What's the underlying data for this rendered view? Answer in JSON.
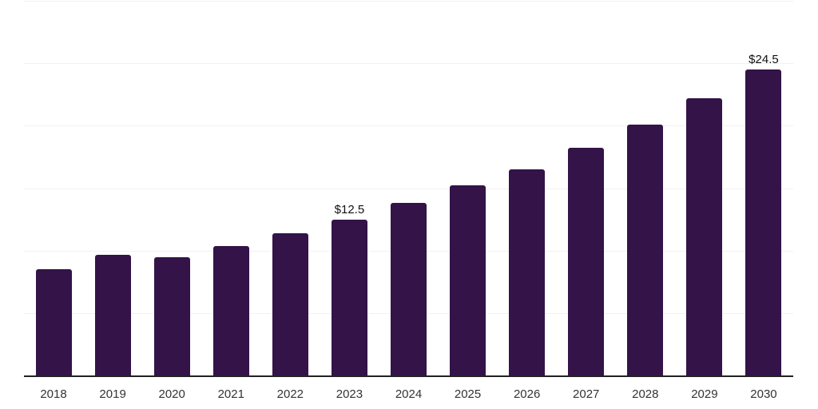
{
  "chart_data": {
    "type": "bar",
    "title": "",
    "xlabel": "",
    "ylabel": "",
    "categories": [
      "2018",
      "2019",
      "2020",
      "2021",
      "2022",
      "2023",
      "2024",
      "2025",
      "2026",
      "2027",
      "2028",
      "2029",
      "2030"
    ],
    "values": [
      8.5,
      9.7,
      9.5,
      10.4,
      11.4,
      12.5,
      13.8,
      15.2,
      16.5,
      18.2,
      20.1,
      22.2,
      24.5
    ],
    "data_labels": {
      "2023": "$12.5",
      "2030": "$24.5"
    },
    "ylim": [
      0,
      30
    ],
    "gridline_step": 5,
    "grid": "horizontal",
    "y_tick_labels_shown": false,
    "legend": "none",
    "colors": {
      "bar": "#331348",
      "gridline": "#f1f1f2",
      "axis_line": "#222222",
      "x_label_text": "#333333",
      "value_label_text": "#111111",
      "background": "#ffffff"
    }
  }
}
